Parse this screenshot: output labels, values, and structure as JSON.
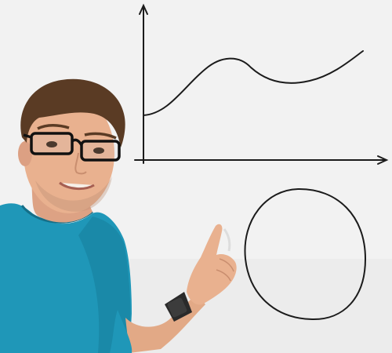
{
  "scene": {
    "subject": "person-pointing-at-whiteboard",
    "colors": {
      "whiteboard": "#f1f1f1",
      "marker": "#1b1b1b",
      "shirt": "#1f97b8",
      "hair": "#5a3b24",
      "skin": "#e9b18f",
      "glasses": "#111111",
      "watch": "#2a2a2a"
    }
  }
}
